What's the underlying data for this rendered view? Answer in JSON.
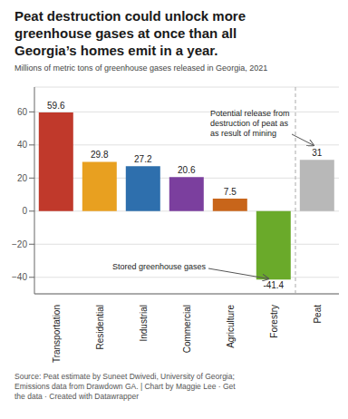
{
  "chart_data": {
    "type": "bar",
    "title": "Peat destruction could unlock more\ngreenhouse gases at once than all\nGeorgia’s homes emit in a year.",
    "subtitle": "Millions of metric tons of greenhouse gases released in Georgia, 2021",
    "categories": [
      "Transportation",
      "Residential",
      "Industrial",
      "Commercial",
      "Agriculture",
      "Forestry",
      "Peat"
    ],
    "values": [
      59.6,
      29.8,
      27.2,
      20.6,
      7.5,
      -41.4,
      31
    ],
    "colors": [
      "#c0392b",
      "#e8a020",
      "#2e6fad",
      "#7b3f9e",
      "#c8651a",
      "#6aaa2a",
      "#b8b8b8"
    ],
    "ylim": [
      -50,
      75
    ],
    "yticks": [
      {
        "value": -40,
        "label": "−40"
      },
      {
        "value": -20,
        "label": "−20"
      },
      0,
      20,
      40,
      60
    ],
    "grid": true,
    "data_labels": true,
    "annotations": [
      {
        "text": "Potential release from\ndestruction of peat as\nas result of mining",
        "category": "Peat"
      },
      {
        "text": "Stored greenhouse gases",
        "category": "Forestry"
      }
    ],
    "source": "Source: Peat estimate by Suneet Dwivedi, University of Georgia;\nEmissions data from Drawdown GA. | Chart by Maggie Lee · Get\nthe data · Created with Datawrapper"
  }
}
